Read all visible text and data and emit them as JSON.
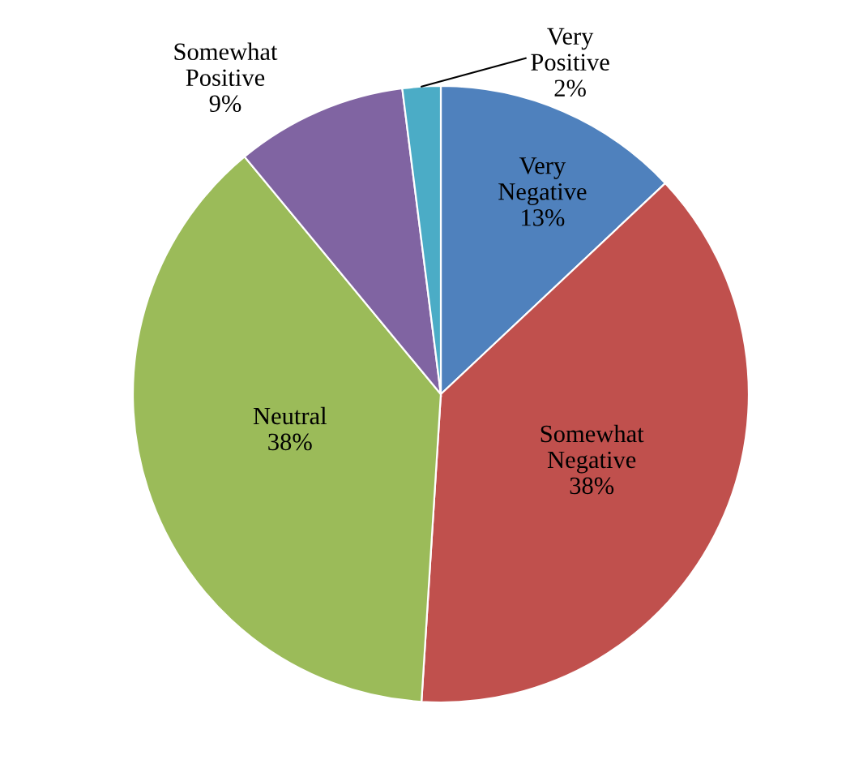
{
  "chart_data": {
    "type": "pie",
    "categories": [
      "Very Negative",
      "Somewhat Negative",
      "Neutral",
      "Somewhat Positive",
      "Very Positive"
    ],
    "values": [
      13,
      38,
      38,
      9,
      2
    ],
    "value_labels": [
      "13%",
      "38%",
      "38%",
      "9%",
      "2%"
    ],
    "colors": [
      "#4f81bd",
      "#c0504d",
      "#9bbb59",
      "#8064a2",
      "#4bacc6"
    ],
    "legend": false
  }
}
